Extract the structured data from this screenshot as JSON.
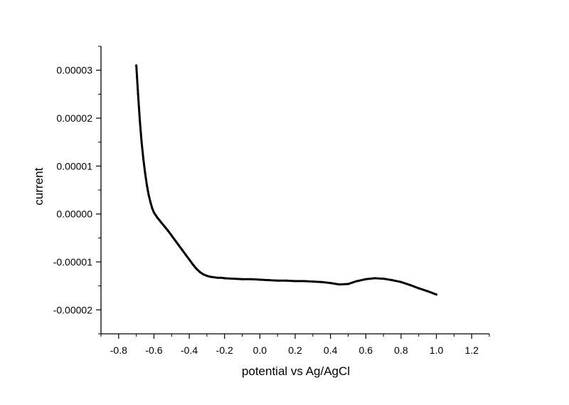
{
  "chart_data": {
    "type": "scatter",
    "title": "",
    "xlabel": "potential vs Ag/AgCl",
    "ylabel": "current",
    "xlim": [
      -0.9,
      1.3
    ],
    "ylim": [
      -2.5e-05,
      3.5e-05
    ],
    "grid": false,
    "x_ticks": [
      -0.8,
      -0.6,
      -0.4,
      -0.2,
      0.0,
      0.2,
      0.4,
      0.6,
      0.8,
      1.0,
      1.2
    ],
    "x_tick_labels": [
      "-0.8",
      "-0.6",
      "-0.4",
      "-0.2",
      "0.0",
      "0.2",
      "0.4",
      "0.6",
      "0.8",
      "1.0",
      "1.2"
    ],
    "y_ticks": [
      -2e-05,
      -1e-05,
      0.0,
      1e-05,
      2e-05,
      3e-05
    ],
    "y_tick_labels": [
      "-0.00002",
      "-0.00001",
      "0.00000",
      "0.00001",
      "0.00002",
      "0.00003"
    ],
    "marker_color": "#000000",
    "series": [
      {
        "x": [
          -0.7,
          -0.69,
          -0.68,
          -0.67,
          -0.66,
          -0.65,
          -0.64,
          -0.63,
          -0.62,
          -0.61,
          -0.6,
          -0.58,
          -0.56,
          -0.54,
          -0.52,
          -0.5,
          -0.48,
          -0.46,
          -0.44,
          -0.42,
          -0.4,
          -0.38,
          -0.36,
          -0.34,
          -0.32,
          -0.3,
          -0.28,
          -0.26,
          -0.24,
          -0.22,
          -0.2,
          -0.15,
          -0.1,
          -0.05,
          0.0,
          0.05,
          0.1,
          0.15,
          0.2,
          0.25,
          0.3,
          0.35,
          0.4,
          0.45,
          0.5,
          0.55,
          0.6,
          0.65,
          0.7,
          0.75,
          0.8,
          0.85,
          0.9,
          0.95,
          1.0
        ],
        "y": [
          3.1e-05,
          2.5e-05,
          1.95e-05,
          1.5e-05,
          1.15e-05,
          8.5e-06,
          6e-06,
          4e-06,
          2.5e-06,
          1.2e-06,
          3e-07,
          -8e-07,
          -1.7e-06,
          -2.6e-06,
          -3.5e-06,
          -4.5e-06,
          -5.5e-06,
          -6.5e-06,
          -7.5e-06,
          -8.5e-06,
          -9.5e-06,
          -1.05e-05,
          -1.14e-05,
          -1.21e-05,
          -1.26e-05,
          -1.29e-05,
          -1.31e-05,
          -1.32e-05,
          -1.33e-05,
          -1.33e-05,
          -1.34e-05,
          -1.35e-05,
          -1.36e-05,
          -1.36e-05,
          -1.37e-05,
          -1.38e-05,
          -1.39e-05,
          -1.39e-05,
          -1.4e-05,
          -1.4e-05,
          -1.41e-05,
          -1.42e-05,
          -1.44e-05,
          -1.47e-05,
          -1.46e-05,
          -1.4e-05,
          -1.36e-05,
          -1.34e-05,
          -1.35e-05,
          -1.38e-05,
          -1.42e-05,
          -1.48e-05,
          -1.55e-05,
          -1.61e-05,
          -1.68e-05
        ]
      }
    ]
  }
}
